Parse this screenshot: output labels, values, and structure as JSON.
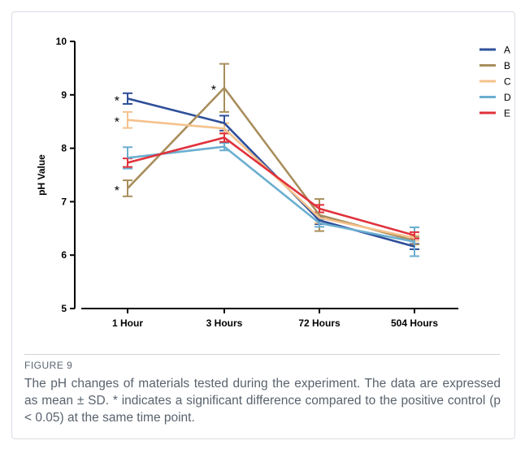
{
  "chart_data": {
    "type": "line",
    "title": "",
    "xlabel": "",
    "ylabel": "pH Value",
    "ylim": [
      5,
      10
    ],
    "yticks": [
      "5",
      "6",
      "7",
      "8",
      "9",
      "10"
    ],
    "categories": [
      "1 Hour",
      "3 Hours",
      "72 Hours",
      "504  Hours"
    ],
    "legend_position": "top-right",
    "grid": false,
    "series": [
      {
        "name": "A",
        "color": "#2e4f9a",
        "values": [
          8.93,
          8.47,
          6.65,
          6.16
        ],
        "sd": [
          0.1,
          0.14,
          0.07,
          0.05
        ]
      },
      {
        "name": "B",
        "color": "#a88e5c",
        "values": [
          7.25,
          9.13,
          6.75,
          6.27
        ],
        "sd": [
          0.15,
          0.45,
          0.3,
          0.07
        ]
      },
      {
        "name": "C",
        "color": "#f5c28c",
        "values": [
          8.53,
          8.37,
          6.7,
          6.32
        ],
        "sd": [
          0.15,
          0.1,
          0.1,
          0.05
        ]
      },
      {
        "name": "D",
        "color": "#6aaed0",
        "values": [
          7.82,
          8.03,
          6.6,
          6.25
        ],
        "sd": [
          0.2,
          0.07,
          0.07,
          0.27
        ]
      },
      {
        "name": "E",
        "color": "#e0323c",
        "values": [
          7.73,
          8.2,
          6.87,
          6.37
        ],
        "sd": [
          0.08,
          0.08,
          0.07,
          0.06
        ]
      }
    ],
    "annotations": [
      {
        "text": "*",
        "category": "1 Hour",
        "y": 8.93
      },
      {
        "text": "*",
        "category": "1 Hour",
        "y": 8.53
      },
      {
        "text": "*",
        "category": "1 Hour",
        "y": 7.25
      },
      {
        "text": "*",
        "category": "3 Hours",
        "y": 9.13
      }
    ]
  },
  "caption": {
    "label": "FIGURE 9",
    "text": "The pH changes of materials tested during the experiment. The data are expressed as mean ± SD. * indicates a significant difference compared to the positive control (p < 0.05) at the same time point."
  }
}
